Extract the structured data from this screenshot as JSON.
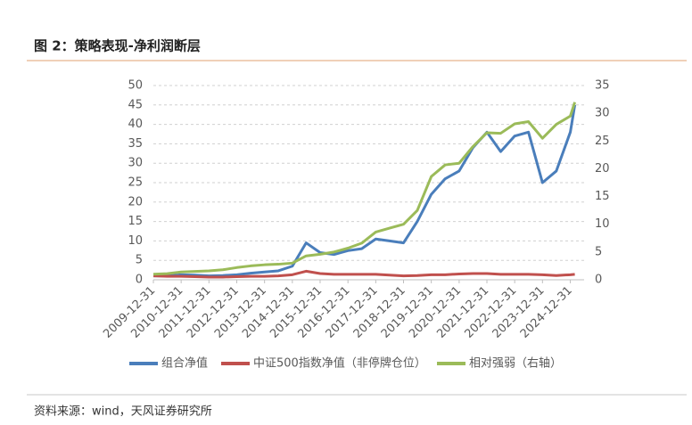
{
  "chart_data": {
    "type": "line",
    "title": "图 2：策略表现-净利润断层",
    "source": "资料来源：wind，天风证券研究所",
    "x": [
      "2009-12-31",
      "2010-06-30",
      "2010-12-31",
      "2011-06-30",
      "2011-12-31",
      "2012-06-30",
      "2012-12-31",
      "2013-06-30",
      "2013-12-31",
      "2014-06-30",
      "2014-12-31",
      "2015-06-30",
      "2015-12-31",
      "2016-06-30",
      "2016-12-31",
      "2017-06-30",
      "2017-12-31",
      "2018-06-30",
      "2018-12-31",
      "2019-06-30",
      "2019-12-31",
      "2020-06-30",
      "2020-12-31",
      "2021-06-30",
      "2021-12-31",
      "2022-06-30",
      "2022-12-31",
      "2023-06-30",
      "2023-12-31",
      "2024-06-30",
      "2024-12-31",
      "2025-02-28"
    ],
    "xlim": [
      "2009-12-31",
      "2025-06-30"
    ],
    "xticks": [
      "2009-12-31",
      "2010-12-31",
      "2011-12-31",
      "2012-12-31",
      "2013-12-31",
      "2014-12-31",
      "2015-12-31",
      "2016-12-31",
      "2017-12-31",
      "2018-12-31",
      "2019-12-31",
      "2020-12-31",
      "2021-12-31",
      "2022-12-31",
      "2023-12-31",
      "2024-12-31"
    ],
    "ylim": [
      0,
      50
    ],
    "yticks": [
      0,
      5,
      10,
      15,
      20,
      25,
      30,
      35,
      40,
      45,
      50
    ],
    "y2lim": [
      0,
      35
    ],
    "y2ticks": [
      0,
      5,
      10,
      15,
      20,
      25,
      30,
      35
    ],
    "grid": true,
    "legend": "bottom",
    "series": [
      {
        "name": "组合净值",
        "color": "#4a7ebb",
        "values": [
          1.0,
          1.0,
          1.3,
          1.2,
          1.0,
          1.1,
          1.3,
          1.7,
          2.0,
          2.3,
          3.5,
          9.5,
          7.0,
          6.5,
          7.5,
          8.0,
          10.5,
          10.0,
          9.5,
          15.0,
          22.0,
          26.0,
          28.0,
          34.0,
          38.0,
          33.0,
          37.0,
          38.0,
          25.0,
          28.0,
          38.0,
          45.0
        ]
      },
      {
        "name": "中证500指数净值（非停牌仓位）",
        "color": "#c0504d",
        "values": [
          1.0,
          0.9,
          0.9,
          0.8,
          0.7,
          0.7,
          0.8,
          0.9,
          0.9,
          1.0,
          1.3,
          2.2,
          1.6,
          1.4,
          1.4,
          1.4,
          1.4,
          1.2,
          1.0,
          1.1,
          1.3,
          1.3,
          1.5,
          1.6,
          1.6,
          1.4,
          1.4,
          1.4,
          1.3,
          1.1,
          1.3,
          1.4
        ]
      },
      {
        "name": "相对强弱（右轴）",
        "color": "#9bbb59",
        "axis": "y2",
        "values": [
          1.0,
          1.1,
          1.4,
          1.5,
          1.6,
          1.8,
          2.2,
          2.5,
          2.7,
          2.8,
          3.0,
          4.3,
          4.6,
          5.0,
          5.7,
          6.6,
          8.6,
          9.3,
          10.0,
          12.5,
          18.6,
          20.7,
          21.0,
          24.0,
          26.5,
          26.4,
          28.1,
          28.5,
          25.5,
          28.0,
          29.5,
          32.0
        ]
      }
    ]
  }
}
